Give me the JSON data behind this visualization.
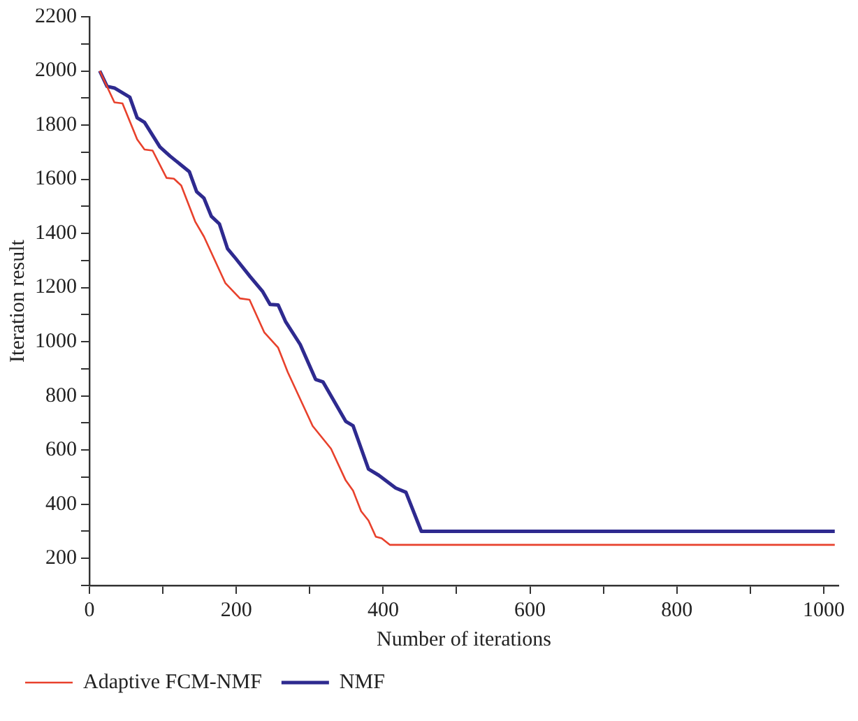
{
  "chart_data": {
    "type": "line",
    "xlabel": "Number of iterations",
    "ylabel": "Iteration result",
    "xlim": [
      0,
      1020
    ],
    "ylim": [
      100,
      2200
    ],
    "xticks": [
      0,
      {
        "value": 100,
        "label": null
      },
      200,
      {
        "value": 300,
        "label": null
      },
      400,
      {
        "value": 500,
        "label": null
      },
      600,
      {
        "value": 700,
        "label": null
      },
      800,
      {
        "value": 900,
        "label": null
      },
      1000
    ],
    "yticks": [
      {
        "value": 100,
        "label": null
      },
      200,
      {
        "value": 300,
        "label": null
      },
      400,
      {
        "value": 500,
        "label": null
      },
      600,
      {
        "value": 700,
        "label": null
      },
      800,
      {
        "value": 900,
        "label": null
      },
      1000,
      {
        "value": 1100,
        "label": null
      },
      1200,
      {
        "value": 1300,
        "label": null
      },
      1400,
      {
        "value": 1500,
        "label": null
      },
      1600,
      {
        "value": 1700,
        "label": null
      },
      1800,
      {
        "value": 1900,
        "label": null
      },
      2000,
      {
        "value": 2100,
        "label": null
      },
      2200
    ],
    "grid": false,
    "legend": "bottom",
    "marker": "none",
    "line_style": "solid",
    "series": [
      {
        "name": "Adaptive FCM-NMF",
        "color": "#e8412c",
        "x": [
          14,
          34,
          45,
          65,
          75,
          86,
          105,
          115,
          125,
          144,
          156,
          185,
          205,
          218,
          238,
          257,
          270,
          304,
          329,
          349,
          359,
          370,
          380,
          390,
          398,
          409,
          1015
        ],
        "values": [
          2000,
          1884,
          1880,
          1747,
          1710,
          1706,
          1605,
          1602,
          1577,
          1444,
          1388,
          1217,
          1160,
          1155,
          1035,
          978,
          888,
          689,
          605,
          488,
          450,
          374,
          340,
          280,
          274,
          250,
          250
        ]
      },
      {
        "name": "NMF",
        "color": "#2e2a8f",
        "x": [
          14,
          24,
          34,
          55,
          65,
          75,
          96,
          110,
          136,
          146,
          156,
          166,
          177,
          188,
          199,
          219,
          236,
          246,
          257,
          267,
          287,
          308,
          318,
          349,
          359,
          380,
          394,
          417,
          431,
          452,
          1015
        ],
        "values": [
          2000,
          1943,
          1937,
          1903,
          1827,
          1810,
          1719,
          1685,
          1628,
          1554,
          1530,
          1463,
          1435,
          1344,
          1308,
          1240,
          1185,
          1138,
          1136,
          1075,
          990,
          861,
          852,
          706,
          690,
          530,
          507,
          460,
          444,
          300,
          300
        ]
      }
    ]
  }
}
